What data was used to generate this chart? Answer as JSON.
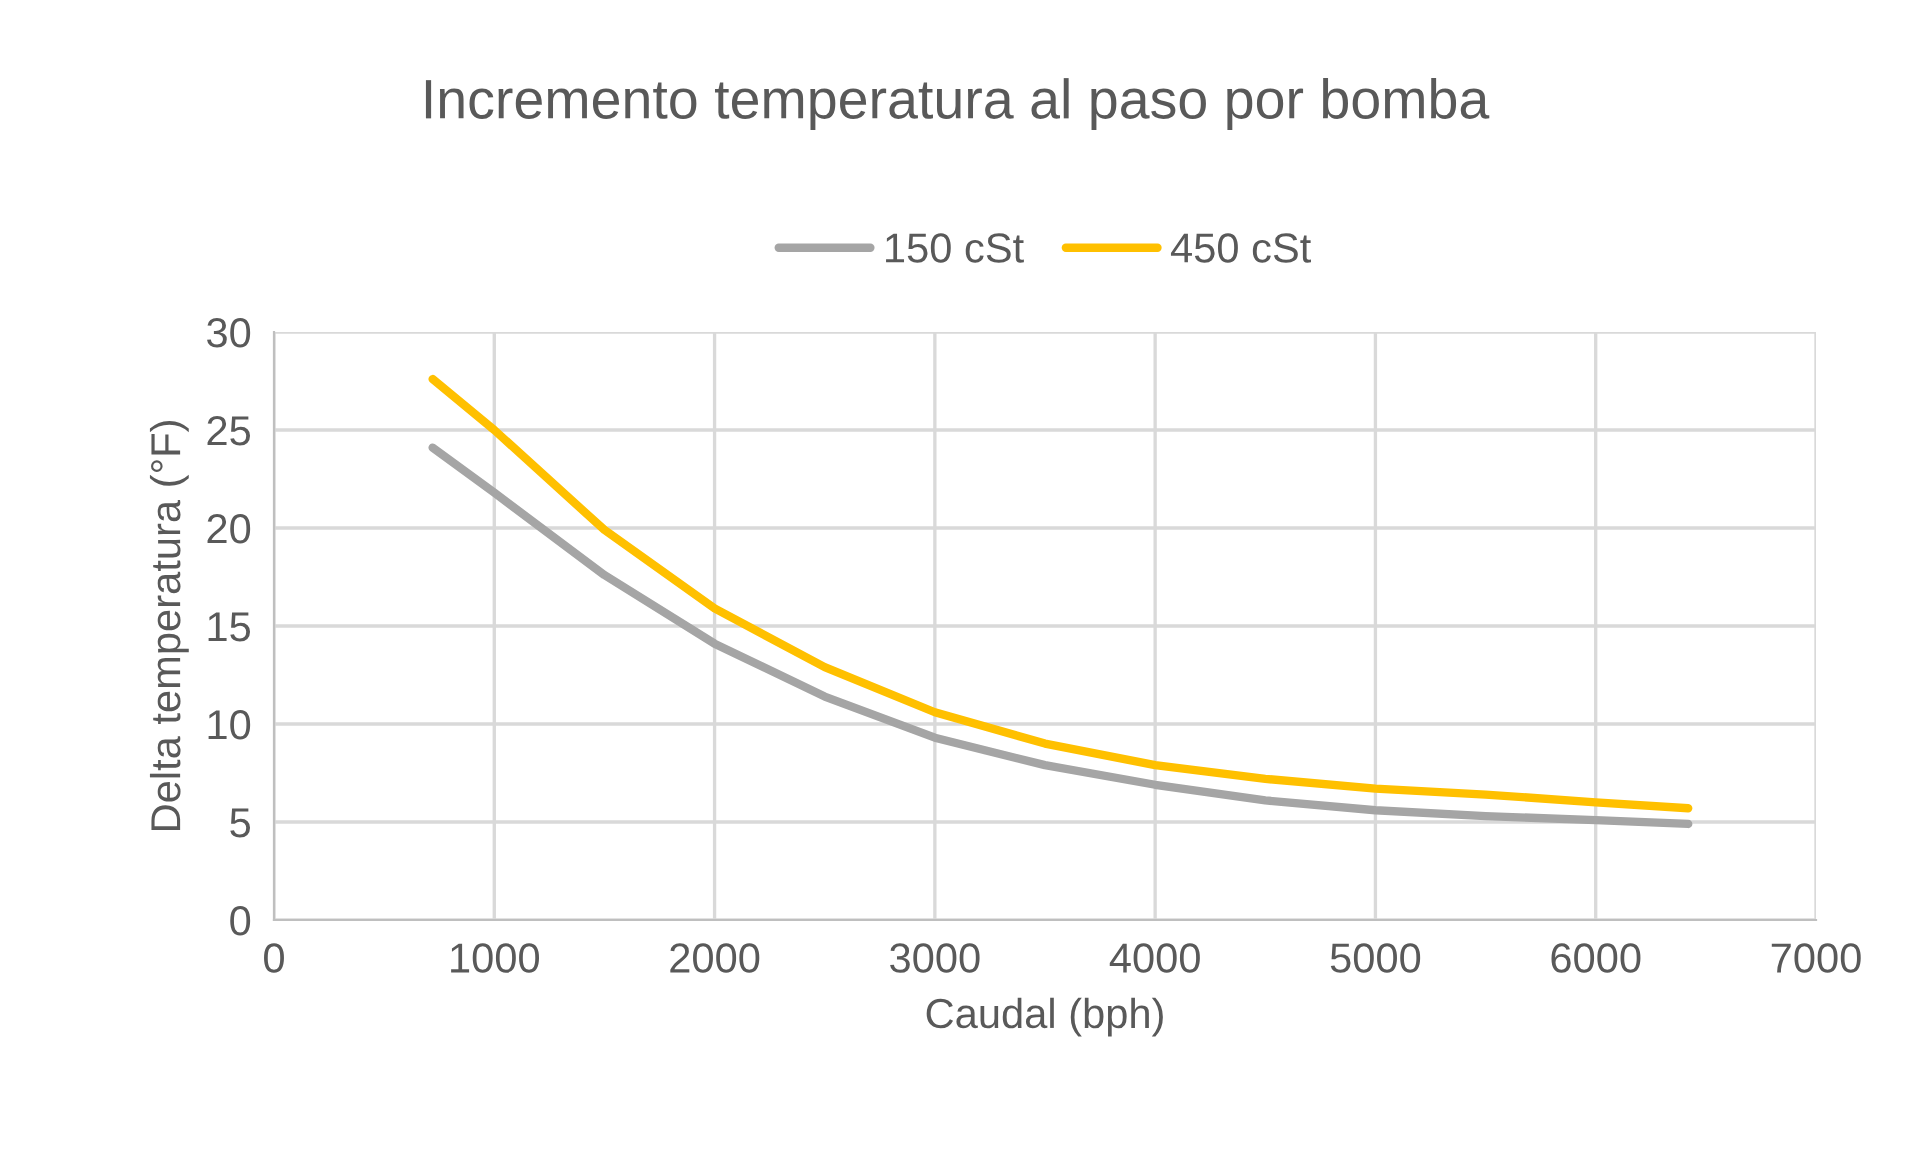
{
  "chart_data": {
    "type": "line",
    "title": "Incremento temperatura al paso por bomba",
    "xlabel": "Caudal (bph)",
    "ylabel": "Delta temperatura (°F)",
    "x": [
      720,
      1000,
      1500,
      2000,
      2500,
      3000,
      3500,
      4000,
      4500,
      5000,
      5500,
      6000,
      6420
    ],
    "series": [
      {
        "name": "150 cSt",
        "color": "#a5a5a5",
        "values": [
          24.1,
          21.8,
          17.6,
          14.1,
          11.4,
          9.3,
          7.9,
          6.9,
          6.1,
          5.6,
          5.3,
          5.1,
          4.9
        ]
      },
      {
        "name": "450 cSt",
        "color": "#ffc000",
        "values": [
          27.6,
          25.0,
          19.9,
          15.9,
          12.9,
          10.6,
          9.0,
          7.9,
          7.2,
          6.7,
          6.4,
          6.0,
          5.7
        ]
      }
    ],
    "xlim": [
      0,
      7000
    ],
    "xticks": [
      0,
      1000,
      2000,
      3000,
      4000,
      5000,
      6000,
      7000
    ],
    "ylim": [
      0,
      30
    ],
    "yticks": [
      0,
      5,
      10,
      15,
      20,
      25,
      30
    ],
    "grid": true,
    "legend": "top",
    "marker": "none",
    "line_style": "solid"
  }
}
